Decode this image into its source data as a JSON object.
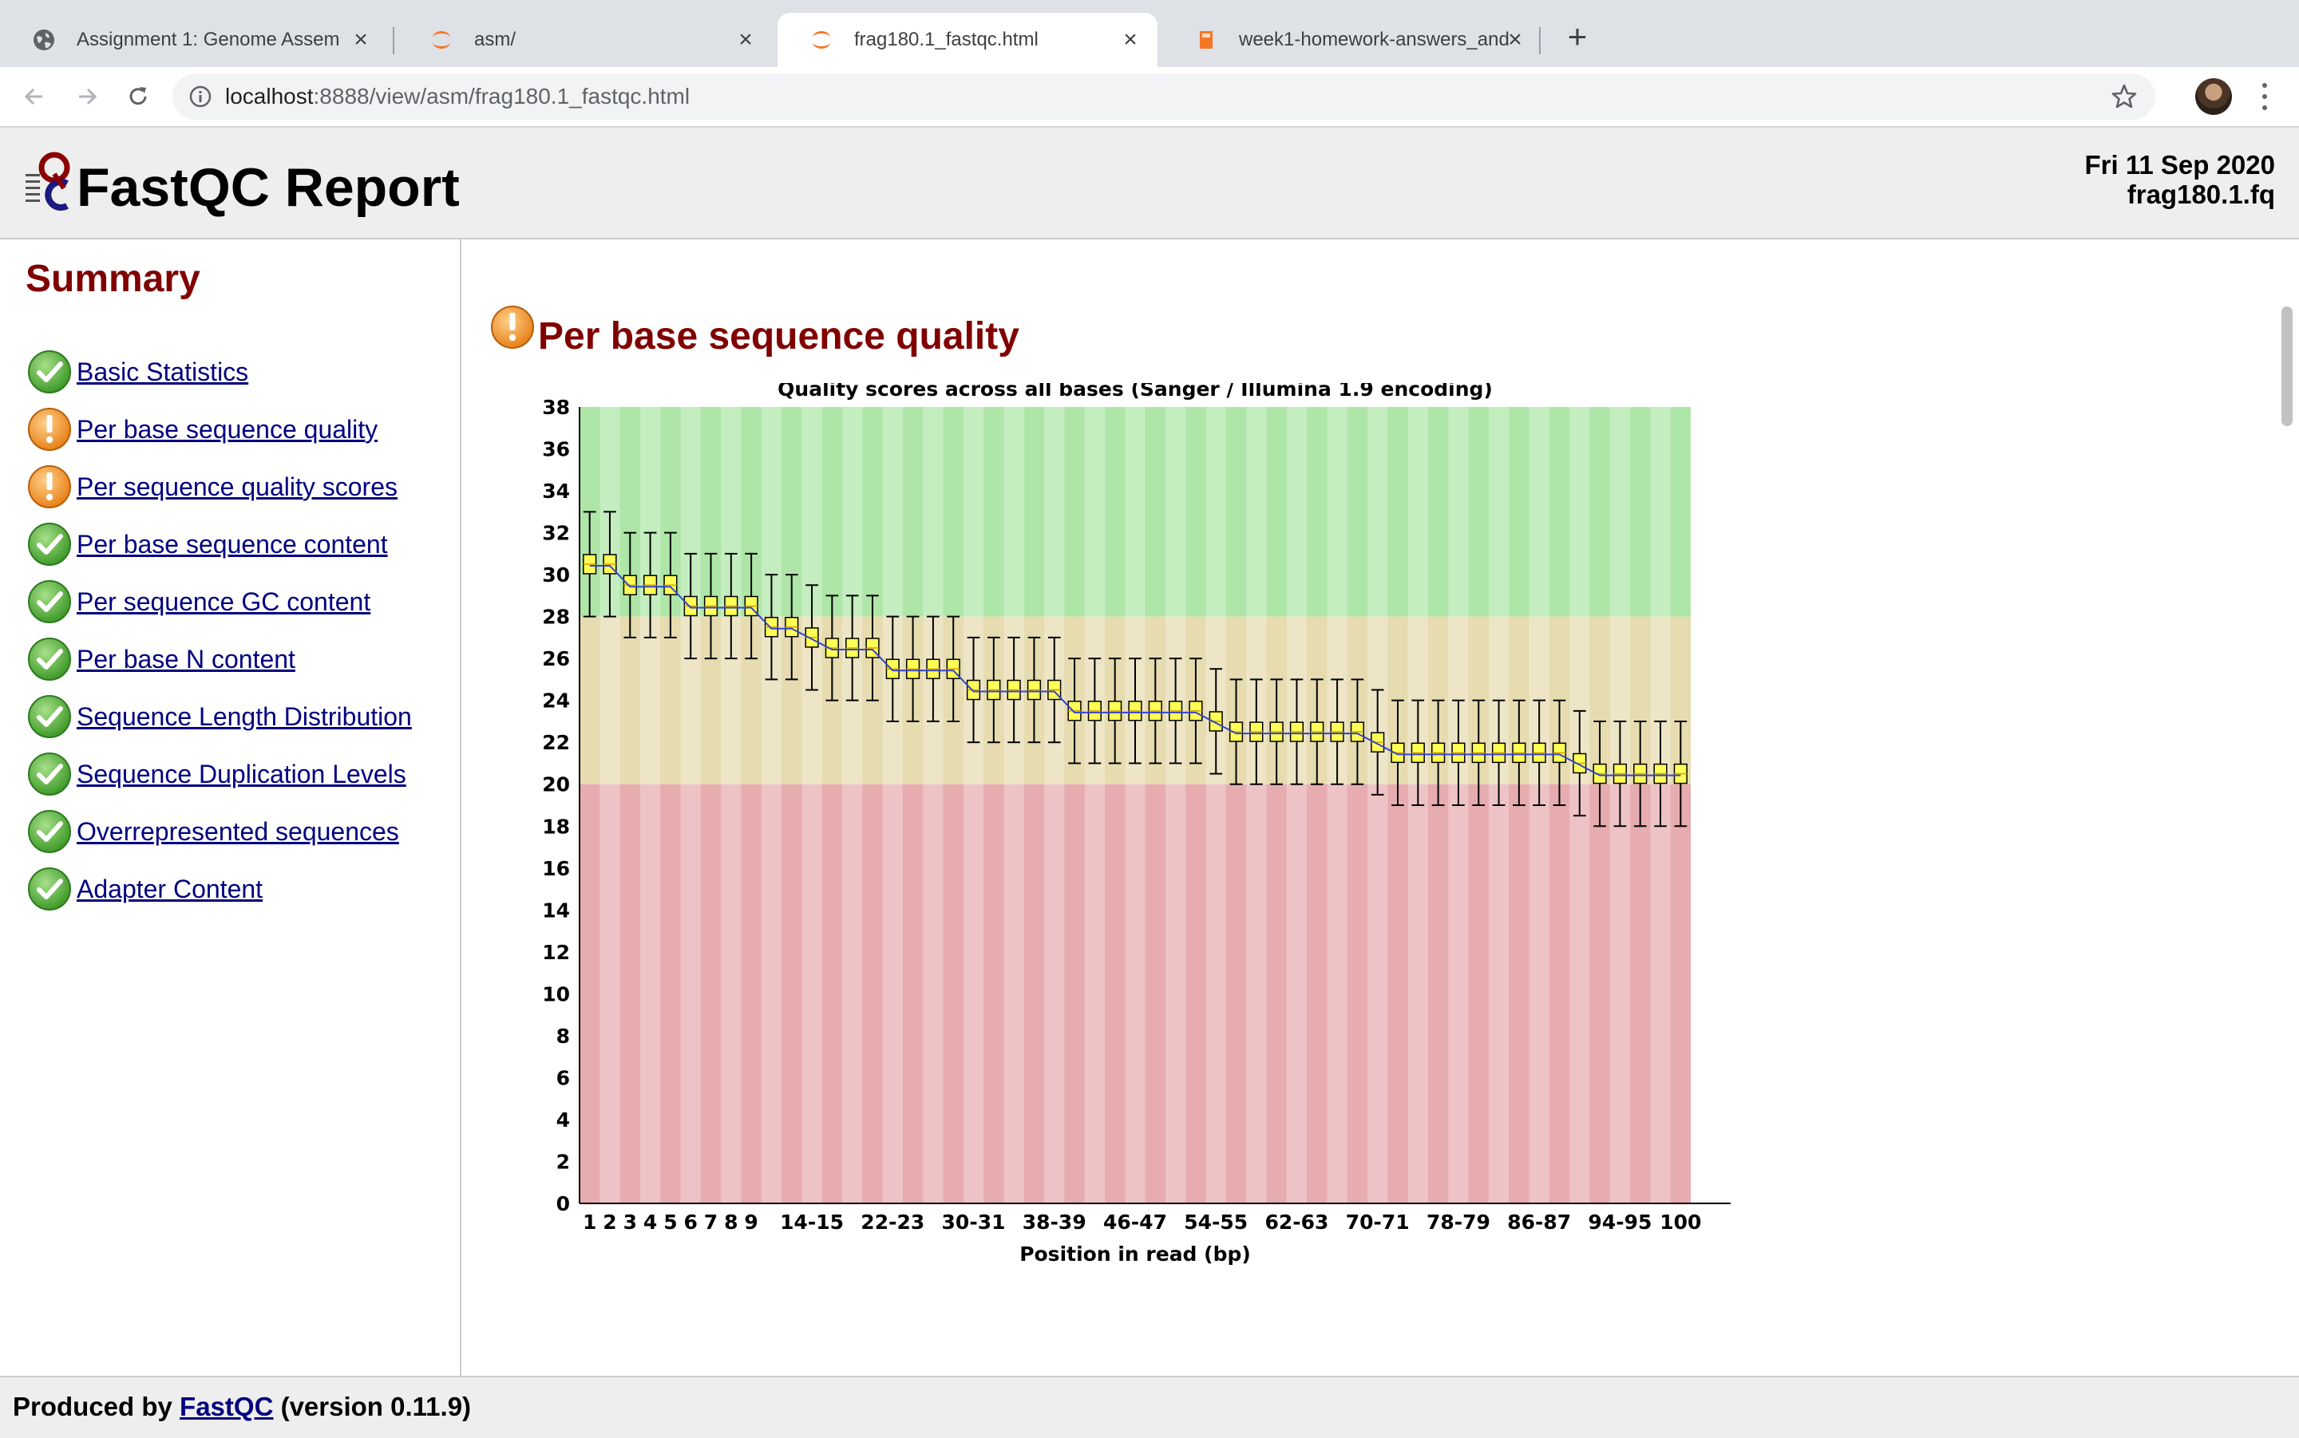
{
  "browser": {
    "tabs": [
      {
        "title": "Assignment 1: Genome Assem",
        "icon": "globe-icon",
        "active": false
      },
      {
        "title": "asm/",
        "icon": "jupyter-icon",
        "active": false
      },
      {
        "title": "frag180.1_fastqc.html",
        "icon": "jupyter-icon",
        "active": true
      },
      {
        "title": "week1-homework-answers_and",
        "icon": "notebook-icon",
        "active": false
      }
    ],
    "url_host": "localhost",
    "url_rest": ":8888/view/asm/frag180.1_fastqc.html"
  },
  "report": {
    "title": "FastQC Report",
    "date": "Fri 11 Sep 2020",
    "filename": "frag180.1.fq"
  },
  "summary": {
    "title": "Summary",
    "items": [
      {
        "label": "Basic Statistics",
        "status": "pass"
      },
      {
        "label": "Per base sequence quality",
        "status": "warn"
      },
      {
        "label": "Per sequence quality scores",
        "status": "warn"
      },
      {
        "label": "Per base sequence content",
        "status": "pass"
      },
      {
        "label": "Per sequence GC content",
        "status": "pass"
      },
      {
        "label": "Per base N content",
        "status": "pass"
      },
      {
        "label": "Sequence Length Distribution",
        "status": "pass"
      },
      {
        "label": "Sequence Duplication Levels",
        "status": "pass"
      },
      {
        "label": "Overrepresented sequences",
        "status": "pass"
      },
      {
        "label": "Adapter Content",
        "status": "pass"
      }
    ]
  },
  "module": {
    "title": "Per base sequence quality",
    "status": "warn"
  },
  "chart_data": {
    "type": "box",
    "title": "Quality scores across all bases (Sanger / Illumina 1.9 encoding)",
    "xlabel": "Position in read (bp)",
    "ylabel": "",
    "ylim": [
      0,
      38
    ],
    "yticks": [
      0,
      2,
      4,
      6,
      8,
      10,
      12,
      14,
      16,
      18,
      20,
      22,
      24,
      26,
      28,
      30,
      32,
      34,
      36,
      38
    ],
    "zones": [
      {
        "from": 28,
        "to": 38,
        "color": "#aee6a8"
      },
      {
        "from": 20,
        "to": 28,
        "color": "#e6dcb0"
      },
      {
        "from": 0,
        "to": 20,
        "color": "#e6acb0"
      }
    ],
    "box_color": "#ffff55",
    "categories": [
      "1",
      "2",
      "3",
      "4",
      "5",
      "6",
      "7",
      "8",
      "9",
      "10-11",
      "12-13",
      "14-15",
      "16-17",
      "18-19",
      "20-21",
      "22-23",
      "24-25",
      "26-27",
      "28-29",
      "30-31",
      "32-33",
      "34-35",
      "36-37",
      "38-39",
      "40-41",
      "42-43",
      "44-45",
      "46-47",
      "48-49",
      "50-51",
      "52-53",
      "54-55",
      "56-57",
      "58-59",
      "60-61",
      "62-63",
      "64-65",
      "66-67",
      "68-69",
      "70-71",
      "72-73",
      "74-75",
      "76-77",
      "78-79",
      "80-81",
      "82-83",
      "84-85",
      "86-87",
      "88-89",
      "90-91",
      "92-93",
      "94-95",
      "96-97",
      "98-99",
      "100"
    ],
    "tick_labels": [
      "1",
      "2",
      "3",
      "4",
      "5",
      "6",
      "7",
      "8",
      "9",
      "14-15",
      "22-23",
      "30-31",
      "38-39",
      "46-47",
      "54-55",
      "62-63",
      "70-71",
      "78-79",
      "86-87",
      "94-95",
      "100"
    ],
    "median": [
      30.5,
      30.5,
      29.5,
      29.5,
      29.5,
      28.5,
      28.5,
      28.5,
      28.5,
      27.5,
      27.5,
      27,
      26.5,
      26.5,
      26.5,
      25.5,
      25.5,
      25.5,
      25.5,
      24.5,
      24.5,
      24.5,
      24.5,
      24.5,
      23.5,
      23.5,
      23.5,
      23.5,
      23.5,
      23.5,
      23.5,
      23,
      22.5,
      22.5,
      22.5,
      22.5,
      22.5,
      22.5,
      22.5,
      22,
      21.5,
      21.5,
      21.5,
      21.5,
      21.5,
      21.5,
      21.5,
      21.5,
      21.5,
      21,
      20.5,
      20.5,
      20.5,
      20.5,
      20.5
    ],
    "whisker_low": [
      28,
      28,
      27,
      27,
      27,
      26,
      26,
      26,
      26,
      25,
      25,
      24.5,
      24,
      24,
      24,
      23,
      23,
      23,
      23,
      22,
      22,
      22,
      22,
      22,
      21,
      21,
      21,
      21,
      21,
      21,
      21,
      20.5,
      20,
      20,
      20,
      20,
      20,
      20,
      20,
      19.5,
      19,
      19,
      19,
      19,
      19,
      19,
      19,
      19,
      19,
      18.5,
      18,
      18,
      18,
      18,
      18
    ],
    "whisker_high": [
      33,
      33,
      32,
      32,
      32,
      31,
      31,
      31,
      31,
      30,
      30,
      29.5,
      29,
      29,
      29,
      28,
      28,
      28,
      28,
      27,
      27,
      27,
      27,
      27,
      26,
      26,
      26,
      26,
      26,
      26,
      26,
      25.5,
      25,
      25,
      25,
      25,
      25,
      25,
      25,
      24.5,
      24,
      24,
      24,
      24,
      24,
      24,
      24,
      24,
      24,
      23.5,
      23,
      23,
      23,
      23,
      23
    ]
  },
  "footer": {
    "prefix": "Produced by ",
    "link": "FastQC",
    "suffix": " (version 0.11.9)"
  }
}
